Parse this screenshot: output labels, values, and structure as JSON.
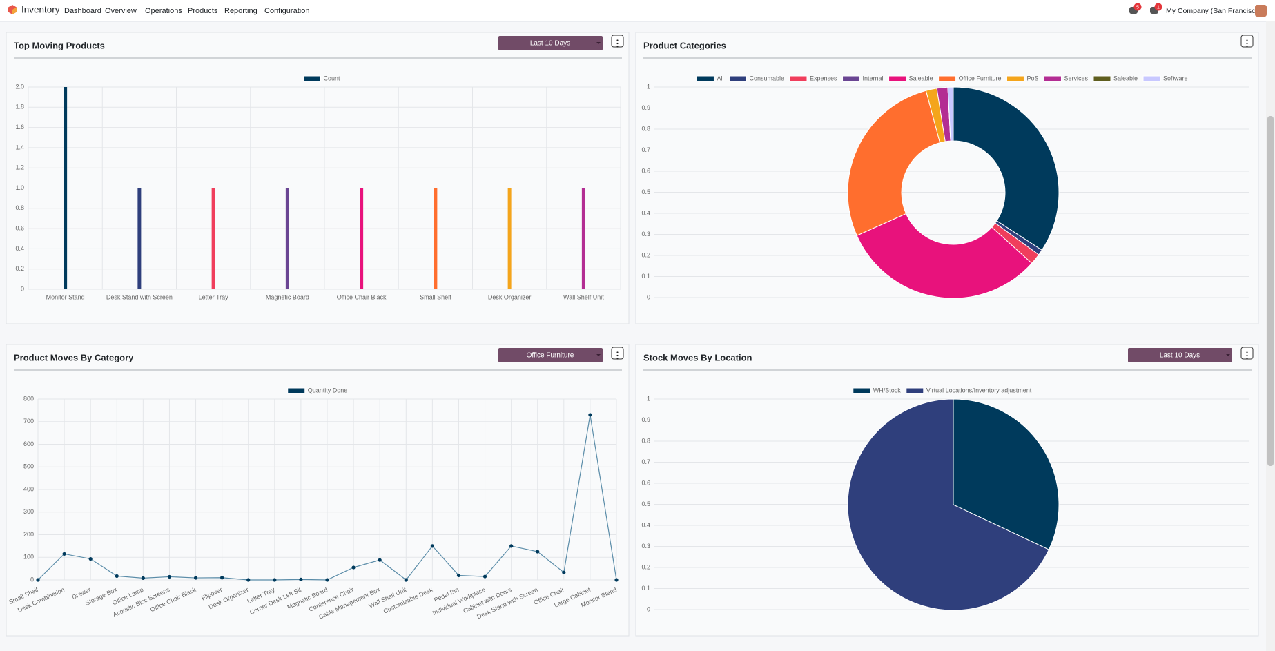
{
  "navbar": {
    "app": "Inventory",
    "menu": [
      "Dashboard",
      "Overview",
      "Operations",
      "Products",
      "Reporting",
      "Configuration"
    ],
    "badges": [
      5,
      1
    ],
    "company": "My Company (San Francisco)"
  },
  "chart_data": [
    {
      "type": "bar",
      "title": "Top Moving Products",
      "filter": "Last 10 Days",
      "categories": [
        "Monitor Stand",
        "Desk Stand with Screen",
        "Letter Tray",
        "Magnetic Board",
        "Office Chair Black",
        "Small Shelf",
        "Desk Organizer",
        "Wall Shelf Unit"
      ],
      "series": [
        {
          "name": "Count",
          "color": "#003a5c",
          "values": [
            2,
            1,
            1,
            1,
            1,
            1,
            1,
            1
          ]
        }
      ],
      "bar_colors": [
        "#003a5c",
        "#2f3f7c",
        "#f03e5c",
        "#6a4593",
        "#e8127c",
        "#ff6e2e",
        "#f4a51c",
        "#b32d93"
      ],
      "ylim": [
        0,
        2
      ],
      "yticks": [
        0,
        0.2,
        0.4,
        0.6,
        0.8,
        {
          "value": 1,
          "label": "1.0"
        },
        1.2,
        1.4,
        1.6,
        1.8,
        {
          "value": 2,
          "label": "2.0"
        }
      ],
      "grid": true
    },
    {
      "type": "doughnut",
      "title": "Product Categories",
      "categories": [
        "All",
        "Consumable",
        "Expenses",
        "Internal",
        "Saleable",
        "Office Furniture",
        "PoS",
        "Services",
        "Saleable",
        "Software"
      ],
      "values": [
        41,
        1,
        2,
        0,
        38,
        33,
        2,
        2,
        0,
        1
      ],
      "colors": [
        "#003a5c",
        "#2f3f7c",
        "#f03e5c",
        "#6a4593",
        "#e8127c",
        "#ff6e2e",
        "#f4a51c",
        "#b32d93",
        "#5f5e1f",
        "#c8c8ff"
      ],
      "ylim": [
        0,
        1
      ],
      "yticks": [
        0,
        0.1,
        0.2,
        0.3,
        0.4,
        0.5,
        0.6,
        0.7,
        0.8,
        0.9,
        1
      ],
      "grid": true
    },
    {
      "type": "line",
      "title": "Product Moves By Category",
      "filter": "Office Furniture",
      "categories": [
        "Small Shelf",
        "Desk Combination",
        "Drawer",
        "Storage Box",
        "Office Lamp",
        "Acoustic Bloc Screens",
        "Office Chair Black",
        "Flipover",
        "Desk Organizer",
        "Letter Tray",
        "Corner Desk Left Sit",
        "Magnetic Board",
        "Conference Chair",
        "Cable Management Box",
        "Wall Shelf Unit",
        "Customizable Desk",
        "Pedal Bin",
        "Individual Workplace",
        "Cabinet with Doors",
        "Desk Stand with Screen",
        "Office Chair",
        "Large Cabinet",
        "Monitor Stand"
      ],
      "series": [
        {
          "name": "Quantity Done",
          "color": "#003a5c",
          "values": [
            0,
            115,
            93,
            17,
            8,
            14,
            9,
            10,
            0,
            0,
            2,
            0,
            55,
            88,
            0,
            150,
            20,
            15,
            150,
            125,
            33,
            730,
            0
          ]
        }
      ],
      "line_color": "#5a8ca8",
      "ylim": [
        0,
        800
      ],
      "yticks": [
        0,
        100,
        200,
        300,
        400,
        500,
        600,
        700,
        800
      ],
      "grid": true
    },
    {
      "type": "pie",
      "title": "Stock Moves By Location",
      "filter": "Last 10 Days",
      "categories": [
        "WH/Stock",
        "Virtual Locations/Inventory adjustment"
      ],
      "values": [
        32,
        68
      ],
      "colors": [
        "#003a5c",
        "#2f3f7c"
      ],
      "ylim": [
        0,
        1
      ],
      "yticks": [
        0,
        0.1,
        0.2,
        0.3,
        0.4,
        0.5,
        0.6,
        0.7,
        0.8,
        0.9,
        1
      ],
      "grid": true
    }
  ]
}
